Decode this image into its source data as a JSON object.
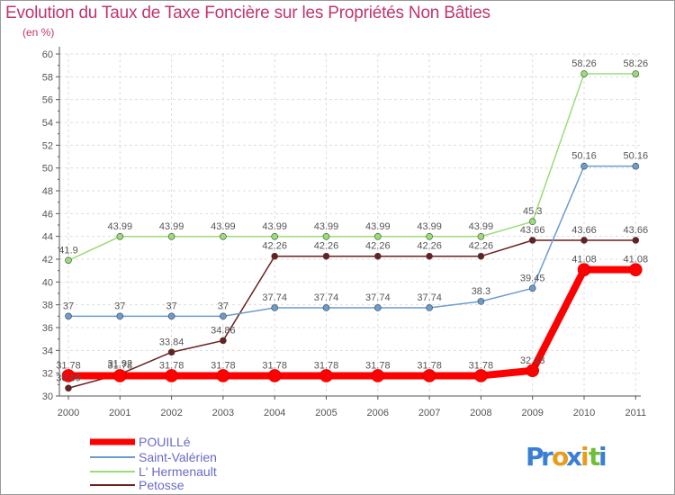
{
  "chart_data": {
    "type": "line",
    "title": "Evolution du Taux de Taxe Foncière sur les Propriétés Non Bâties",
    "unit_label": "(en %)",
    "x": [
      "2000",
      "2001",
      "2002",
      "2003",
      "2004",
      "2005",
      "2006",
      "2007",
      "2008",
      "2009",
      "2010",
      "2011"
    ],
    "ylim": [
      30,
      60
    ],
    "yticks": [
      30,
      32,
      34,
      36,
      38,
      40,
      42,
      44,
      46,
      48,
      50,
      52,
      54,
      56,
      58,
      60
    ],
    "grid": true,
    "legend_position": "bottom-left",
    "series": [
      {
        "name": "POUILLé",
        "color": "#ff0000",
        "values": [
          31.78,
          31.78,
          31.78,
          31.78,
          31.78,
          31.78,
          31.78,
          31.78,
          31.78,
          32.23,
          41.08,
          41.08
        ],
        "labels": [
          "31.78",
          "31.78",
          "31.78",
          "31.78",
          "31.78",
          "31.78",
          "31.78",
          "31.78",
          "31.78",
          "32.23",
          "41.08",
          "41.08"
        ]
      },
      {
        "name": "Saint-Valérien",
        "color": "#6b9ccf",
        "values": [
          37,
          37,
          37,
          37,
          37.74,
          37.74,
          37.74,
          37.74,
          38.3,
          39.45,
          50.16,
          50.16
        ],
        "labels": [
          "37",
          "37",
          "37",
          "37",
          "37.74",
          "37.74",
          "37.74",
          "37.74",
          "38.3",
          "39.45",
          "50.16",
          "50.16"
        ]
      },
      {
        "name": "L' Hermenault",
        "color": "#99dd77",
        "values": [
          41.9,
          43.99,
          43.99,
          43.99,
          43.99,
          43.99,
          43.99,
          43.99,
          43.99,
          45.3,
          58.26,
          58.26
        ],
        "labels": [
          "41.9",
          "43.99",
          "43.99",
          "43.99",
          "43.99",
          "43.99",
          "43.99",
          "43.99",
          "43.99",
          "45.3",
          "58.26",
          "58.26"
        ]
      },
      {
        "name": "Petosse",
        "color": "#6b1f1f",
        "values": [
          30.69,
          31.92,
          33.84,
          34.86,
          42.26,
          42.26,
          42.26,
          42.26,
          42.26,
          43.66,
          43.66,
          43.66
        ],
        "labels": [
          "30.69",
          "31.92",
          "33.84",
          "34.86",
          "42.26",
          "42.26",
          "42.26",
          "42.26",
          "42.26",
          "43.66",
          "43.66",
          "43.66"
        ]
      }
    ]
  },
  "logo": {
    "text": "Proxiti",
    "letters": [
      "P",
      "r",
      "o",
      "x",
      "i",
      "t",
      "i"
    ],
    "colors": [
      "#3a7fd5",
      "#3a7fd5",
      "#e89c1d",
      "#3a7fd5",
      "#e89c1d",
      "#6fbf3a",
      "#3a7fd5"
    ]
  }
}
